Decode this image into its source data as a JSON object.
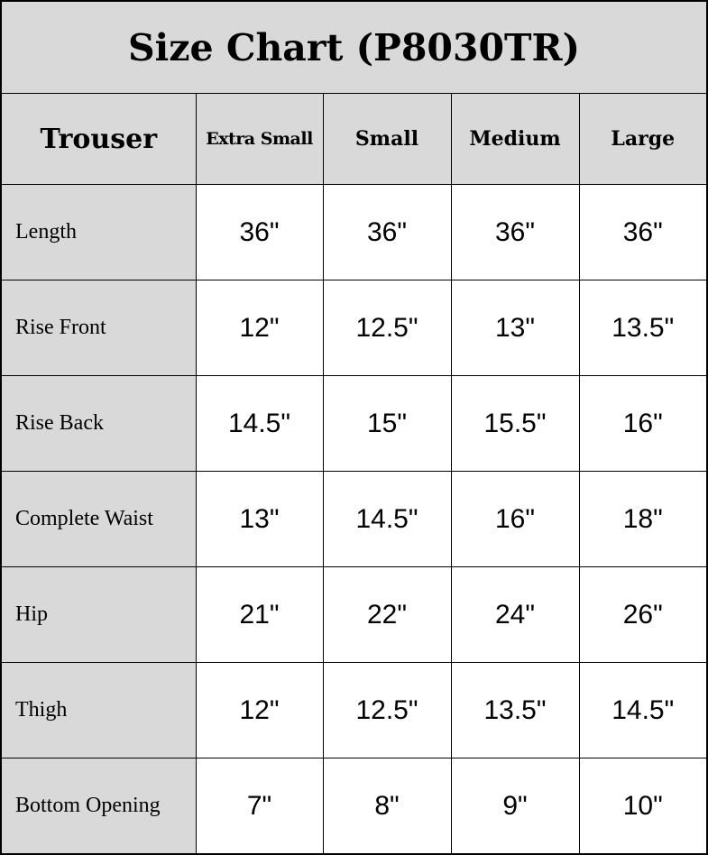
{
  "title": "Size Chart (P8030TR)",
  "corner_label": "Trouser",
  "sizes": [
    "Extra Small",
    "Small",
    "Medium",
    "Large"
  ],
  "rows": [
    {
      "label": "Length",
      "values": [
        "36\"",
        "36\"",
        "36\"",
        "36\""
      ]
    },
    {
      "label": "Rise Front",
      "values": [
        "12\"",
        "12.5\"",
        "13\"",
        "13.5\""
      ]
    },
    {
      "label": "Rise Back",
      "values": [
        "14.5\"",
        "15\"",
        "15.5\"",
        "16\""
      ]
    },
    {
      "label": "Complete Waist",
      "values": [
        "13\"",
        "14.5\"",
        "16\"",
        "18\""
      ]
    },
    {
      "label": "Hip",
      "values": [
        "21\"",
        "22\"",
        "24\"",
        "26\""
      ]
    },
    {
      "label": "Thigh",
      "values": [
        "12\"",
        "12.5\"",
        "13.5\"",
        "14.5\""
      ]
    },
    {
      "label": "Bottom Opening",
      "values": [
        "7\"",
        "8\"",
        "9\"",
        "10\""
      ]
    }
  ],
  "colors": {
    "header_bg": "#d9d9d9",
    "cell_bg": "#ffffff",
    "border": "#000000"
  }
}
